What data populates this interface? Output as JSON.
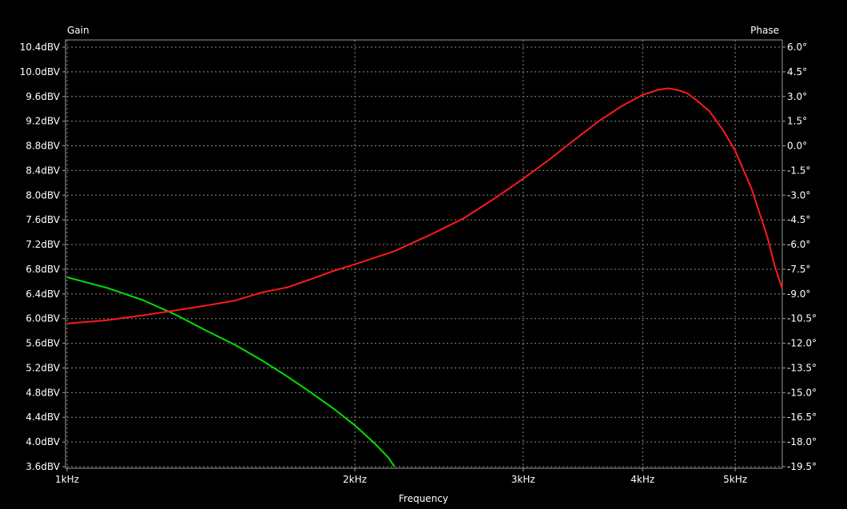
{
  "chart_data": {
    "type": "line",
    "title": "",
    "left_axis_title": "Gain",
    "right_axis_title": "Phase",
    "xlabel": "Frequency",
    "xscale": "log",
    "xlim": [
      1000,
      5600
    ],
    "ylim_left": [
      3.6,
      10.4
    ],
    "ylim_right": [
      -19.5,
      6.0
    ],
    "grid": true,
    "x_ticks": [
      {
        "value": 1000,
        "label": "1kHz"
      },
      {
        "value": 2000,
        "label": "2kHz"
      },
      {
        "value": 3000,
        "label": "3kHz"
      },
      {
        "value": 4000,
        "label": "4kHz"
      },
      {
        "value": 5000,
        "label": "5kHz"
      }
    ],
    "y_left_ticks": [
      {
        "value": 10.4,
        "label": "10.4dBV"
      },
      {
        "value": 10.0,
        "label": "10.0dBV"
      },
      {
        "value": 9.6,
        "label": "9.6dBV"
      },
      {
        "value": 9.2,
        "label": "9.2dBV"
      },
      {
        "value": 8.8,
        "label": "8.8dBV"
      },
      {
        "value": 8.4,
        "label": "8.4dBV"
      },
      {
        "value": 8.0,
        "label": "8.0dBV"
      },
      {
        "value": 7.6,
        "label": "7.6dBV"
      },
      {
        "value": 7.2,
        "label": "7.2dBV"
      },
      {
        "value": 6.8,
        "label": "6.8dBV"
      },
      {
        "value": 6.4,
        "label": "6.4dBV"
      },
      {
        "value": 6.0,
        "label": "6.0dBV"
      },
      {
        "value": 5.6,
        "label": "5.6dBV"
      },
      {
        "value": 5.2,
        "label": "5.2dBV"
      },
      {
        "value": 4.8,
        "label": "4.8dBV"
      },
      {
        "value": 4.4,
        "label": "4.4dBV"
      },
      {
        "value": 4.0,
        "label": "4.0dBV"
      },
      {
        "value": 3.6,
        "label": "3.6dBV"
      }
    ],
    "y_right_ticks": [
      {
        "value": 6.0,
        "label": "6.0°"
      },
      {
        "value": 4.5,
        "label": "4.5°"
      },
      {
        "value": 3.0,
        "label": "3.0°"
      },
      {
        "value": 1.5,
        "label": "1.5°"
      },
      {
        "value": 0.0,
        "label": "0.0°"
      },
      {
        "value": -1.5,
        "label": "-1.5°"
      },
      {
        "value": -3.0,
        "label": "-3.0°"
      },
      {
        "value": -4.5,
        "label": "-4.5°"
      },
      {
        "value": -6.0,
        "label": "-6.0°"
      },
      {
        "value": -7.5,
        "label": "-7.5°"
      },
      {
        "value": -9.0,
        "label": "-9.0°"
      },
      {
        "value": -10.5,
        "label": "-10.5°"
      },
      {
        "value": -12.0,
        "label": "-12.0°"
      },
      {
        "value": -13.5,
        "label": "-13.5°"
      },
      {
        "value": -15.0,
        "label": "-15.0°"
      },
      {
        "value": -16.5,
        "label": "-16.5°"
      },
      {
        "value": -18.0,
        "label": "-18.0°"
      },
      {
        "value": -19.5,
        "label": "-19.5°"
      }
    ],
    "series": [
      {
        "axis": "left",
        "color": "#00e000",
        "points": [
          [
            1000,
            6.67
          ],
          [
            1100,
            6.5
          ],
          [
            1200,
            6.3
          ],
          [
            1300,
            6.06
          ],
          [
            1400,
            5.8
          ],
          [
            1500,
            5.57
          ],
          [
            1600,
            5.32
          ],
          [
            1700,
            5.06
          ],
          [
            1800,
            4.8
          ],
          [
            1900,
            4.54
          ],
          [
            2000,
            4.27
          ],
          [
            2100,
            3.97
          ],
          [
            2170,
            3.74
          ],
          [
            2200,
            3.6
          ]
        ]
      },
      {
        "axis": "right",
        "color": "#ff1a1a",
        "points": [
          [
            1000,
            -10.8
          ],
          [
            1100,
            -10.6
          ],
          [
            1200,
            -10.3
          ],
          [
            1300,
            -10.0
          ],
          [
            1400,
            -9.7
          ],
          [
            1500,
            -9.4
          ],
          [
            1600,
            -8.9
          ],
          [
            1700,
            -8.6
          ],
          [
            1800,
            -8.1
          ],
          [
            1900,
            -7.6
          ],
          [
            2000,
            -7.2
          ],
          [
            2200,
            -6.4
          ],
          [
            2400,
            -5.4
          ],
          [
            2600,
            -4.4
          ],
          [
            2800,
            -3.2
          ],
          [
            3000,
            -2.0
          ],
          [
            3200,
            -0.8
          ],
          [
            3400,
            0.4
          ],
          [
            3600,
            1.5
          ],
          [
            3800,
            2.4
          ],
          [
            4000,
            3.1
          ],
          [
            4150,
            3.4
          ],
          [
            4250,
            3.5
          ],
          [
            4350,
            3.4
          ],
          [
            4450,
            3.2
          ],
          [
            4550,
            2.8
          ],
          [
            4700,
            2.1
          ],
          [
            4850,
            1.0
          ],
          [
            5000,
            -0.3
          ],
          [
            5200,
            -2.6
          ],
          [
            5400,
            -5.5
          ],
          [
            5500,
            -7.3
          ],
          [
            5600,
            -8.7
          ]
        ]
      }
    ]
  }
}
